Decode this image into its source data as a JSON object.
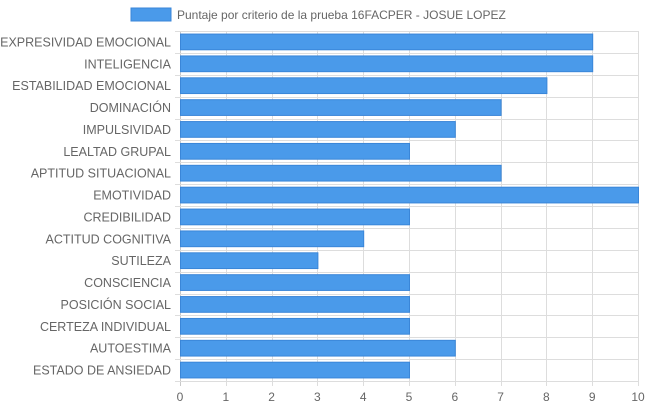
{
  "chart_data": {
    "type": "bar",
    "orientation": "horizontal",
    "categories": [
      "EXPRESIVIDAD EMOCIONAL",
      "INTELIGENCIA",
      "ESTABILIDAD EMOCIONAL",
      "DOMINACIÓN",
      "IMPULSIVIDAD",
      "LEALTAD GRUPAL",
      "APTITUD SITUACIONAL",
      "EMOTIVIDAD",
      "CREDIBILIDAD",
      "ACTITUD COGNITIVA",
      "SUTILEZA",
      "CONSCIENCIA",
      "POSICIÓN SOCIAL",
      "CERTEZA INDIVIDUAL",
      "AUTOESTIMA",
      "ESTADO DE ANSIEDAD"
    ],
    "series": [
      {
        "name": "Puntaje por criterio de la prueba 16FACPER - JOSUE LOPEZ",
        "values": [
          9,
          9,
          8,
          7,
          6,
          5,
          7,
          10,
          5,
          4,
          3,
          5,
          5,
          5,
          6,
          5
        ],
        "color": "#4a9aea",
        "border_color": "#3a86d8"
      }
    ],
    "xlim": [
      0,
      10
    ],
    "x_ticks": [
      "0",
      "1",
      "2",
      "3",
      "4",
      "5",
      "6",
      "7",
      "8",
      "9",
      "10"
    ],
    "grid": true,
    "legend": "top-center",
    "grid_color": "#dddddd",
    "text_color": "#666666"
  }
}
